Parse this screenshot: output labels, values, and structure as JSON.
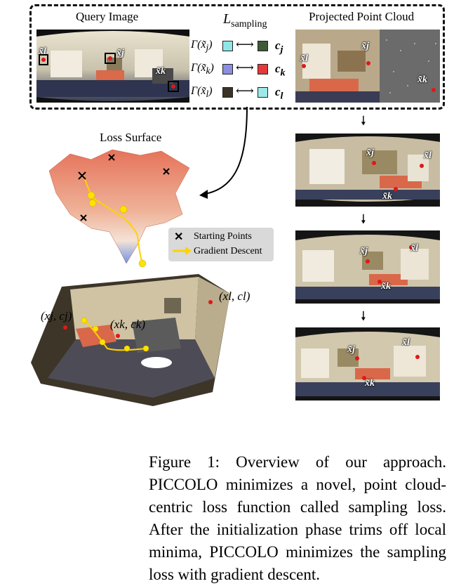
{
  "figure": {
    "query_image_label": "Query Image",
    "sampling_loss_label": "L",
    "sampling_loss_subscript": "sampling",
    "projected_label": "Projected Point Cloud",
    "loss_surface_label": "Loss Surface",
    "legend": {
      "starting_points": "Starting Points",
      "gradient_descent": "Gradient Descent"
    },
    "pairs": [
      {
        "gamma": "Γ(x̃",
        "sub": "j",
        "c": "c",
        "csub": "j",
        "left_color": "#8fe6e6",
        "right_color": "#3d5a37"
      },
      {
        "gamma": "Γ(x̃",
        "sub": "k",
        "c": "c",
        "csub": "k",
        "left_color": "#8a8fe0",
        "right_color": "#e23a3a"
      },
      {
        "gamma": "Γ(x̃",
        "sub": "l",
        "c": "c",
        "csub": "l",
        "left_color": "#3b3426",
        "right_color": "#9fe8ea"
      }
    ],
    "query_marks": [
      "x̃l",
      "x̃j",
      "x̃k"
    ],
    "projected_marks": [
      [
        "x̃l",
        "x̃j",
        "x̃k"
      ],
      [
        "x̃j",
        "x̃l",
        "x̃k"
      ],
      [
        "x̃j",
        "x̃l",
        "x̃k"
      ],
      [
        "x̃j",
        "x̃l",
        "x̃k"
      ]
    ],
    "pointcloud_labels": {
      "j": "(xj, cj)",
      "k": "(xk, ck)",
      "l": "(xl, cl)"
    }
  },
  "caption": "Figure 1: Overview of our approach. PICCOLO minimizes a novel, point cloud-centric loss function called sampling loss. After the initialization phase trims off local minima, PICCOLO minimizes the sampling loss with gradient descent."
}
